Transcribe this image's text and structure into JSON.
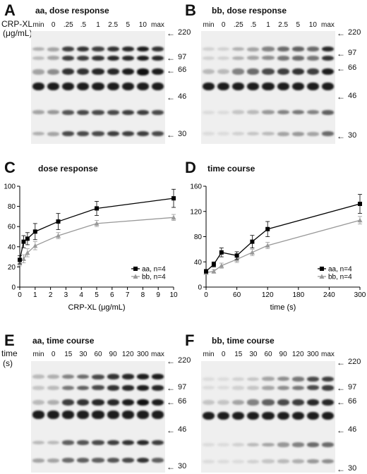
{
  "panels": {
    "A": {
      "letter": "A",
      "title": "aa, dose response",
      "side_label_1": "CRP-XL",
      "side_label_2": "(μg/mL)",
      "lanes": [
        "min",
        "0",
        ".25",
        ".5",
        "1",
        "2.5",
        "5",
        "10",
        "max"
      ]
    },
    "B": {
      "letter": "B",
      "title": "bb, dose response",
      "lanes": [
        "min",
        "0",
        ".25",
        ".5",
        "1",
        "2.5",
        "5",
        "10",
        "max"
      ]
    },
    "C": {
      "letter": "C",
      "title": "dose response"
    },
    "D": {
      "letter": "D",
      "title": "time course"
    },
    "E": {
      "letter": "E",
      "title": "aa, time course",
      "side_label_1": "time",
      "side_label_2": "(s)",
      "lanes": [
        "min",
        "0",
        "15",
        "30",
        "60",
        "90",
        "120",
        "300",
        "max"
      ]
    },
    "F": {
      "letter": "F",
      "title": "bb, time course",
      "lanes": [
        "min",
        "0",
        "15",
        "30",
        "60",
        "90",
        "120",
        "300",
        "max"
      ]
    }
  },
  "mw_markers": [
    "220",
    "97",
    "66",
    "46",
    "30"
  ],
  "blot_bands": {
    "A": [
      [
        0.25,
        0.3,
        0.75,
        0.8,
        0.75,
        0.8,
        0.85,
        0.9,
        0.8
      ],
      [
        0.2,
        0.3,
        0.75,
        0.75,
        0.8,
        0.85,
        0.85,
        0.9,
        0.85
      ],
      [
        0.3,
        0.4,
        0.8,
        0.8,
        0.85,
        0.85,
        0.9,
        0.95,
        0.9
      ],
      [
        0.9,
        0.9,
        0.9,
        0.9,
        0.9,
        0.9,
        0.9,
        0.9,
        0.9
      ],
      [
        0.3,
        0.35,
        0.65,
        0.7,
        0.7,
        0.7,
        0.75,
        0.75,
        0.7
      ],
      [
        0.25,
        0.3,
        0.7,
        0.7,
        0.7,
        0.75,
        0.75,
        0.75,
        0.7
      ]
    ],
    "B": [
      [
        0.1,
        0.1,
        0.25,
        0.3,
        0.45,
        0.55,
        0.6,
        0.55,
        0.85
      ],
      [
        0.1,
        0.1,
        0.25,
        0.3,
        0.4,
        0.5,
        0.55,
        0.5,
        0.8
      ],
      [
        0.2,
        0.2,
        0.45,
        0.55,
        0.7,
        0.75,
        0.8,
        0.75,
        0.9
      ],
      [
        0.9,
        0.9,
        0.9,
        0.9,
        0.9,
        0.9,
        0.9,
        0.9,
        0.9
      ],
      [
        0.05,
        0.05,
        0.15,
        0.2,
        0.35,
        0.45,
        0.5,
        0.45,
        0.6
      ],
      [
        0.05,
        0.05,
        0.1,
        0.15,
        0.2,
        0.3,
        0.35,
        0.3,
        0.55
      ]
    ],
    "E": [
      [
        0.2,
        0.25,
        0.45,
        0.55,
        0.7,
        0.8,
        0.85,
        0.9,
        0.9
      ],
      [
        0.15,
        0.2,
        0.5,
        0.6,
        0.7,
        0.8,
        0.85,
        0.9,
        0.85
      ],
      [
        0.2,
        0.25,
        0.75,
        0.8,
        0.85,
        0.85,
        0.9,
        0.95,
        0.9
      ],
      [
        0.9,
        0.9,
        0.9,
        0.9,
        0.9,
        0.9,
        0.9,
        0.9,
        0.9
      ],
      [
        0.2,
        0.2,
        0.6,
        0.65,
        0.7,
        0.75,
        0.8,
        0.85,
        0.75
      ],
      [
        0.3,
        0.3,
        0.55,
        0.6,
        0.6,
        0.65,
        0.7,
        0.8,
        0.6
      ]
    ],
    "F": [
      [
        0.05,
        0.05,
        0.1,
        0.15,
        0.3,
        0.4,
        0.5,
        0.7,
        0.75
      ],
      [
        0.05,
        0.05,
        0.1,
        0.15,
        0.3,
        0.4,
        0.5,
        0.7,
        0.75
      ],
      [
        0.15,
        0.15,
        0.3,
        0.45,
        0.6,
        0.7,
        0.75,
        0.85,
        0.85
      ],
      [
        0.9,
        0.9,
        0.9,
        0.9,
        0.9,
        0.9,
        0.9,
        0.9,
        0.9
      ],
      [
        0.05,
        0.05,
        0.1,
        0.2,
        0.3,
        0.35,
        0.45,
        0.55,
        0.55
      ],
      [
        0.05,
        0.05,
        0.05,
        0.1,
        0.15,
        0.2,
        0.25,
        0.35,
        0.4
      ]
    ]
  },
  "chart_data": [
    {
      "id": "C",
      "type": "line",
      "title": "dose response",
      "xlabel": "CRP-XL (μg/mL)",
      "ylabel": "",
      "xlim": [
        0,
        10
      ],
      "ylim": [
        0,
        100
      ],
      "xticks": [
        0,
        1,
        2,
        3,
        4,
        5,
        6,
        7,
        8,
        9,
        10
      ],
      "yticks": [
        0,
        20,
        40,
        60,
        80,
        100
      ],
      "legend_position": "bottom-right",
      "series": [
        {
          "name": "aa, n=4",
          "color": "#000000",
          "marker": "square",
          "x": [
            0,
            0.25,
            0.5,
            1,
            2.5,
            5,
            10
          ],
          "y": [
            27,
            45,
            48,
            55,
            65,
            78,
            88
          ],
          "err": [
            4,
            6,
            6,
            8,
            8,
            7,
            9
          ]
        },
        {
          "name": "bb, n=4",
          "color": "#999999",
          "marker": "triangle",
          "x": [
            0,
            0.25,
            0.5,
            1,
            2.5,
            5,
            10
          ],
          "y": [
            24,
            28,
            34,
            41,
            51,
            63,
            69
          ],
          "err": [
            3,
            4,
            4,
            4,
            3,
            3,
            3
          ]
        }
      ]
    },
    {
      "id": "D",
      "type": "line",
      "title": "time course",
      "xlabel": "time (s)",
      "ylabel": "",
      "xlim": [
        0,
        300
      ],
      "ylim": [
        0,
        160
      ],
      "xticks": [
        0,
        60,
        120,
        180,
        240,
        300
      ],
      "yticks": [
        0,
        40,
        80,
        120,
        160
      ],
      "legend_position": "bottom-right",
      "series": [
        {
          "name": "aa, n=4",
          "color": "#000000",
          "marker": "square",
          "x": [
            0,
            15,
            30,
            60,
            90,
            120,
            300
          ],
          "y": [
            25,
            36,
            55,
            50,
            72,
            92,
            132
          ],
          "err": [
            3,
            4,
            7,
            6,
            10,
            12,
            15
          ]
        },
        {
          "name": "bb, n=4",
          "color": "#999999",
          "marker": "triangle",
          "x": [
            0,
            15,
            30,
            60,
            90,
            120,
            300
          ],
          "y": [
            23,
            25,
            34,
            44,
            55,
            66,
            106
          ],
          "err": [
            2,
            3,
            4,
            5,
            5,
            5,
            6
          ]
        }
      ]
    }
  ]
}
